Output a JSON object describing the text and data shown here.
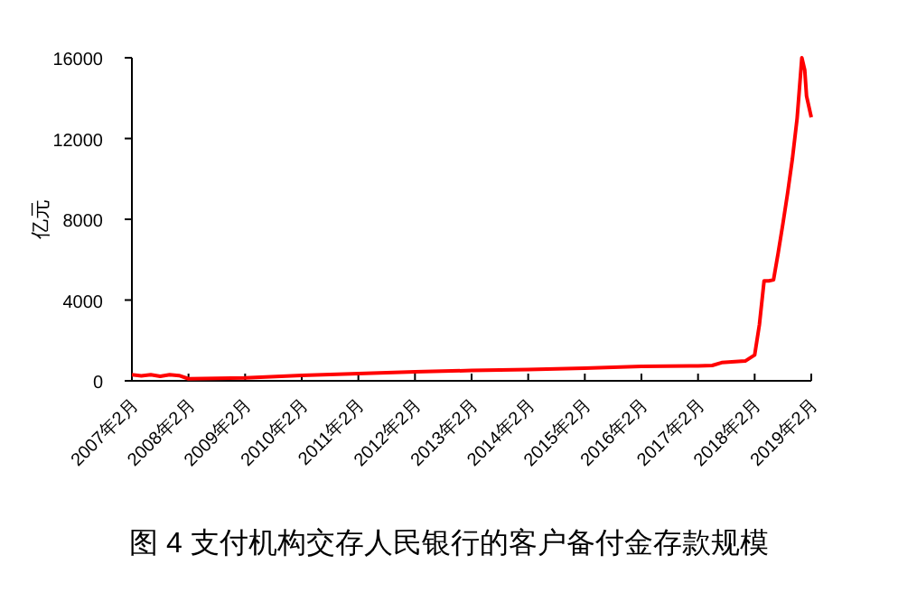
{
  "chart_data": {
    "type": "line",
    "title": "图 4  支付机构交存人民银行的客户备付金存款规模",
    "ylabel": "亿元",
    "xlim": [
      "2007-02",
      "2019-02"
    ],
    "xticks": [
      {
        "value": "2007-02",
        "label": "2007年2月"
      },
      {
        "value": "2008-02",
        "label": "2008年2月"
      },
      {
        "value": "2009-02",
        "label": "2009年2月"
      },
      {
        "value": "2010-02",
        "label": "2010年2月"
      },
      {
        "value": "2011-02",
        "label": "2011年2月"
      },
      {
        "value": "2012-02",
        "label": "2012年2月"
      },
      {
        "value": "2013-02",
        "label": "2013年2月"
      },
      {
        "value": "2014-02",
        "label": "2014年2月"
      },
      {
        "value": "2015-02",
        "label": "2015年2月"
      },
      {
        "value": "2016-02",
        "label": "2016年2月"
      },
      {
        "value": "2017-02",
        "label": "2017年2月"
      },
      {
        "value": "2018-02",
        "label": "2018年2月"
      },
      {
        "value": "2019-02",
        "label": "2019年2月"
      }
    ],
    "ylim": [
      0,
      16000
    ],
    "yticks": [
      0,
      4000,
      8000,
      12000,
      16000
    ],
    "x": [
      "2007-02",
      "2007-04",
      "2007-06",
      "2007-08",
      "2007-10",
      "2007-12",
      "2008-02",
      "2009-02",
      "2010-02",
      "2011-02",
      "2012-02",
      "2013-02",
      "2014-02",
      "2015-02",
      "2016-02",
      "2017-02",
      "2017-05",
      "2017-07",
      "2017-12",
      "2018-02",
      "2018-03",
      "2018-04",
      "2018-05",
      "2018-06",
      "2018-07",
      "2018-08",
      "2018-09",
      "2018-10",
      "2018-11",
      "2018-12",
      "2018-12-20",
      "2019-01",
      "2019-02"
    ],
    "series": [
      {
        "color": "#ff0000",
        "values": [
          300,
          250,
          300,
          220,
          300,
          260,
          100,
          150,
          270,
          360,
          450,
          510,
          560,
          630,
          715,
          740,
          760,
          900,
          980,
          1280,
          2770,
          4950,
          4950,
          5000,
          6350,
          7800,
          9320,
          11000,
          13000,
          16000,
          15400,
          14100,
          13050
        ]
      }
    ]
  }
}
